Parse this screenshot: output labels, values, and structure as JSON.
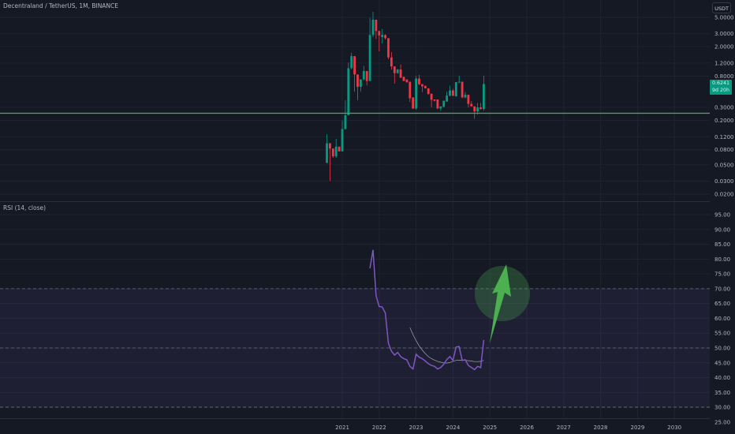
{
  "header": {
    "title": "Decentraland / TetherUS, 1M, BINANCE"
  },
  "price_scale": {
    "unit": "USDT",
    "ticks": [
      "5.0000",
      "3.0000",
      "2.0000",
      "1.2000",
      "0.8000",
      "0.3000",
      "0.2000",
      "0.1200",
      "0.0800",
      "0.0500",
      "0.0300",
      "0.0200"
    ],
    "last_price": "0.6241",
    "countdown": "9d 20h"
  },
  "rsi": {
    "title": "RSI (14, close)",
    "ticks": [
      "95.00",
      "90.00",
      "85.00",
      "80.00",
      "75.00",
      "70.00",
      "65.00",
      "60.00",
      "55.00",
      "50.00",
      "45.00",
      "40.00",
      "35.00",
      "30.00",
      "25.00"
    ]
  },
  "time_axis": {
    "ticks": [
      "2021",
      "2022",
      "2023",
      "2024",
      "2025",
      "2026",
      "2027",
      "2028",
      "2029",
      "2030"
    ]
  },
  "colors": {
    "up": "#089981",
    "down": "#f23645",
    "rsi": "#7e57c2",
    "rsi_ma": "#c8c8c8",
    "support": "#4caf50",
    "annotation": "#4caf50"
  },
  "chart_data": [
    {
      "type": "candlestick",
      "title": "Decentraland / TetherUS, 1M, BINANCE",
      "y_scale": "log",
      "ylim": [
        0.02,
        5.0
      ],
      "start": "2020-08",
      "interval": "1M",
      "ohlc": [
        [
          0.053,
          0.13,
          0.053,
          0.098
        ],
        [
          0.098,
          0.098,
          0.03,
          0.083
        ],
        [
          0.083,
          0.083,
          0.062,
          0.065
        ],
        [
          0.065,
          0.112,
          0.062,
          0.088
        ],
        [
          0.088,
          0.088,
          0.076,
          0.076
        ],
        [
          0.076,
          0.2,
          0.076,
          0.153
        ],
        [
          0.153,
          0.375,
          0.15,
          0.235
        ],
        [
          0.235,
          1.22,
          0.235,
          1.02
        ],
        [
          1.02,
          1.66,
          0.98,
          1.49
        ],
        [
          1.49,
          1.49,
          0.49,
          0.84
        ],
        [
          0.84,
          0.84,
          0.375,
          0.57
        ],
        [
          0.57,
          0.72,
          0.49,
          0.72
        ],
        [
          0.72,
          1.1,
          0.7,
          0.935
        ],
        [
          0.935,
          0.935,
          0.595,
          0.685
        ],
        [
          0.685,
          4.92,
          0.685,
          2.88
        ],
        [
          2.88,
          5.94,
          2.7,
          4.65
        ],
        [
          4.65,
          4.65,
          2.55,
          3.26
        ],
        [
          3.26,
          3.3,
          1.73,
          2.84
        ],
        [
          2.7,
          3.48,
          2.22,
          2.9
        ],
        [
          2.88,
          2.95,
          2.5,
          2.61
        ],
        [
          2.61,
          2.61,
          1.35,
          1.43
        ],
        [
          1.43,
          1.69,
          0.98,
          1.08
        ],
        [
          1.08,
          1.08,
          0.63,
          0.875
        ],
        [
          0.875,
          1.0,
          0.86,
          0.98
        ],
        [
          0.98,
          1.15,
          0.75,
          0.76
        ],
        [
          0.78,
          0.78,
          0.68,
          0.685
        ],
        [
          0.72,
          0.72,
          0.65,
          0.66
        ],
        [
          0.67,
          0.67,
          0.355,
          0.4
        ],
        [
          0.41,
          0.41,
          0.285,
          0.29
        ],
        [
          0.29,
          0.81,
          0.28,
          0.74
        ],
        [
          0.74,
          0.83,
          0.6,
          0.62
        ],
        [
          0.62,
          0.62,
          0.485,
          0.58
        ],
        [
          0.59,
          0.59,
          0.54,
          0.545
        ],
        [
          0.545,
          0.545,
          0.45,
          0.455
        ],
        [
          0.46,
          0.46,
          0.3,
          0.38
        ],
        [
          0.385,
          0.385,
          0.36,
          0.37
        ],
        [
          0.385,
          0.385,
          0.285,
          0.29
        ],
        [
          0.29,
          0.31,
          0.27,
          0.31
        ],
        [
          0.305,
          0.37,
          0.3,
          0.37
        ],
        [
          0.36,
          0.49,
          0.36,
          0.435
        ],
        [
          0.43,
          0.595,
          0.43,
          0.51
        ],
        [
          0.51,
          0.535,
          0.43,
          0.43
        ],
        [
          0.425,
          0.66,
          0.42,
          0.66
        ],
        [
          0.66,
          0.81,
          0.64,
          0.67
        ],
        [
          0.67,
          0.67,
          0.4,
          0.41
        ],
        [
          0.41,
          0.485,
          0.4,
          0.445
        ],
        [
          0.445,
          0.445,
          0.3,
          0.335
        ],
        [
          0.335,
          0.365,
          0.31,
          0.31
        ],
        [
          0.31,
          0.31,
          0.21,
          0.265
        ],
        [
          0.265,
          0.345,
          0.24,
          0.3
        ],
        [
          0.3,
          0.345,
          0.28,
          0.285
        ],
        [
          0.285,
          0.81,
          0.27,
          0.6241
        ]
      ],
      "horizontal_line": 0.25
    },
    {
      "type": "line",
      "title": "RSI (14, close)",
      "ylim": [
        25,
        95
      ],
      "levels": [
        70,
        50,
        30
      ],
      "series": [
        {
          "start": "2021-10",
          "values": [
            76.9,
            83.1,
            67.6,
            64.0,
            63.8,
            61.8,
            51.6,
            48.9,
            47.6,
            48.5,
            47.1,
            46.4,
            46.0,
            43.8,
            42.9,
            47.9,
            46.9,
            46.4,
            45.6,
            44.7,
            44.1,
            43.8,
            42.9,
            43.4,
            44.5,
            46.1,
            47.1,
            45.8,
            50.3,
            50.5,
            45.8,
            46.0,
            44.1,
            43.4,
            42.7,
            43.8,
            43.4,
            52.7
          ]
        },
        {
          "start": "2022-11",
          "values": [
            56.9,
            54.5,
            52.5,
            50.7,
            49.3,
            48.1,
            47.1,
            46.4,
            45.9,
            45.5,
            45.2,
            45.0,
            44.9,
            45.1,
            45.5,
            45.8,
            45.9,
            45.9,
            45.8,
            45.7,
            45.6,
            45.4,
            45.4,
            45.5,
            45.8
          ]
        }
      ]
    }
  ]
}
